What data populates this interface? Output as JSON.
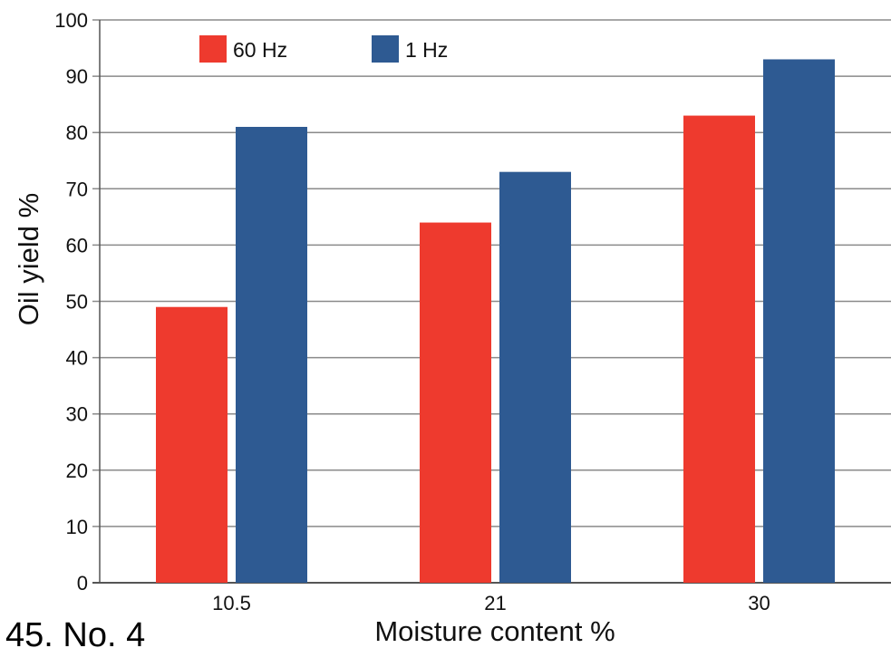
{
  "chart_data": {
    "type": "bar",
    "categories": [
      "10.5",
      "21",
      "30"
    ],
    "series": [
      {
        "name": "60 Hz",
        "values": [
          49,
          64,
          83
        ],
        "color": "#ee3a2e"
      },
      {
        "name": "1 Hz",
        "values": [
          81,
          73,
          93
        ],
        "color": "#2e5a92"
      }
    ],
    "xlabel": "Moisture content %",
    "ylabel": "Oil yield %",
    "ylim": [
      0,
      100
    ],
    "yticks": [
      "0",
      "10",
      "20",
      "30",
      "40",
      "50",
      "60",
      "70",
      "80",
      "90",
      "100"
    ],
    "grid": true,
    "legend_position": "top-left"
  },
  "caption_fragment": "45. No. 4",
  "colors": {
    "grid": "#8a8a8a",
    "axis": "#555555"
  }
}
